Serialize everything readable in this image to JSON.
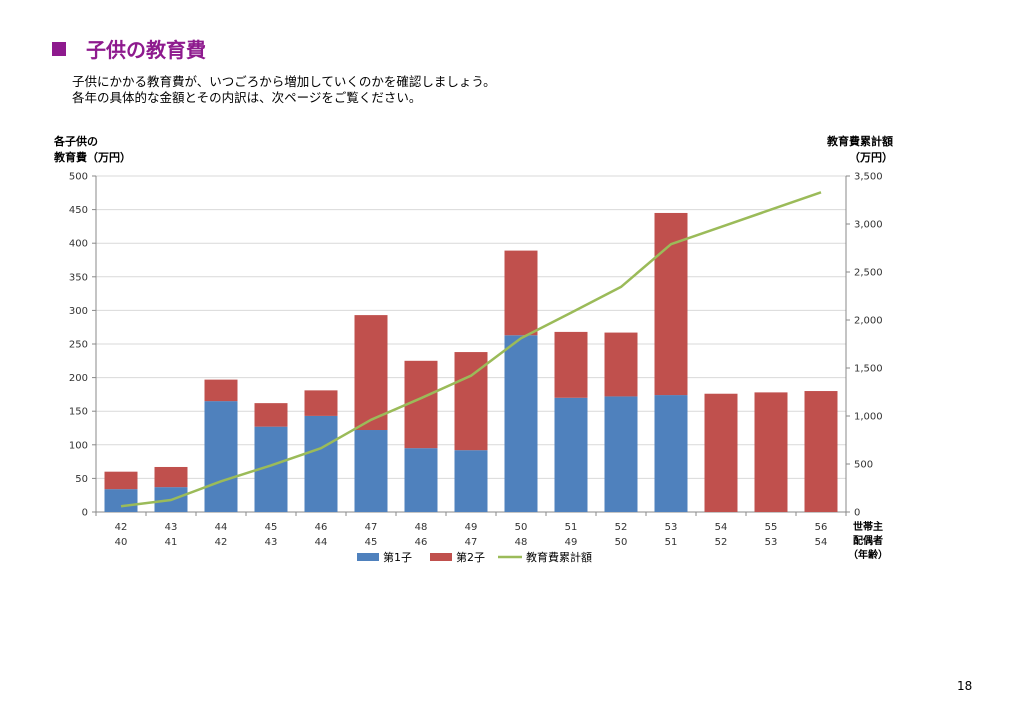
{
  "header": {
    "title": "子供の教育費",
    "intro_line1": "子供にかかる教育費が、いつごろから増加していくのかを確認しましょう。",
    "intro_line2": "各年の具体的な金額とその内訳は、次ページをご覧ください。"
  },
  "colors": {
    "accent": "#8e1a8e",
    "child1": "#4f81bd",
    "child2": "#c0504d",
    "cumulative": "#9bbb59"
  },
  "page_number": "18",
  "chart_data": {
    "type": "bar",
    "stacked": true,
    "y_left_title_line1": "各子供の",
    "y_left_title_line2": "教育費（万円）",
    "y_right_title_line1": "教育費累計額",
    "y_right_title_line2": "（万円）",
    "y_left_ticks": [
      "0",
      "50",
      "100",
      "150",
      "200",
      "250",
      "300",
      "350",
      "400",
      "450",
      "500"
    ],
    "y_right_ticks": [
      "0",
      "500",
      "1,000",
      "1,500",
      "2,000",
      "2,500",
      "3,000",
      "3,500"
    ],
    "ylim_left": [
      0,
      500
    ],
    "ylim_right": [
      0,
      3500
    ],
    "categories_row1": [
      "42",
      "43",
      "44",
      "45",
      "46",
      "47",
      "48",
      "49",
      "50",
      "51",
      "52",
      "53",
      "54",
      "55",
      "56"
    ],
    "categories_row2": [
      "40",
      "41",
      "42",
      "43",
      "44",
      "45",
      "46",
      "47",
      "48",
      "49",
      "50",
      "51",
      "52",
      "53",
      "54"
    ],
    "x_axis_label_line1": "世帯主",
    "x_axis_label_line2": "配偶者",
    "x_axis_label_line3": "（年齢）",
    "series": [
      {
        "name": "第1子",
        "type": "bar",
        "axis": "left",
        "values": [
          34,
          37,
          165,
          127,
          143,
          122,
          95,
          92,
          263,
          170,
          172,
          174,
          0,
          0,
          0
        ]
      },
      {
        "name": "第2子",
        "type": "bar",
        "axis": "left",
        "values": [
          26,
          30,
          32,
          35,
          38,
          171,
          130,
          146,
          126,
          98,
          95,
          271,
          176,
          178,
          180
        ]
      },
      {
        "name": "教育費累計額",
        "type": "line",
        "axis": "right",
        "values": [
          60,
          125,
          320,
          485,
          665,
          960,
          1185,
          1420,
          1810,
          2075,
          2345,
          2790,
          2970,
          3150,
          3330
        ]
      }
    ]
  }
}
